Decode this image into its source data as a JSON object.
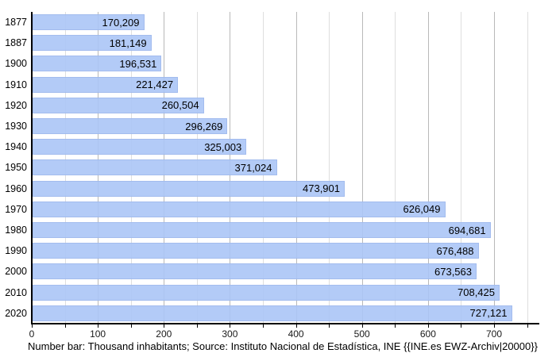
{
  "chart_data": {
    "type": "bar",
    "orientation": "horizontal",
    "title": "",
    "xlabel": "",
    "ylabel": "",
    "units": "thousand inhabitants",
    "categories": [
      "1877",
      "1887",
      "1900",
      "1910",
      "1920",
      "1930",
      "1940",
      "1950",
      "1960",
      "1970",
      "1980",
      "1990",
      "2000",
      "2010",
      "2020"
    ],
    "values": [
      170209,
      181149,
      196531,
      221427,
      260504,
      296269,
      325003,
      371024,
      473901,
      626049,
      694681,
      676488,
      673563,
      708425,
      727121
    ],
    "value_labels": [
      "170,209",
      "181,149",
      "196,531",
      "221,427",
      "260,504",
      "296,269",
      "325,003",
      "371,024",
      "473,901",
      "626,049",
      "694,681",
      "676,488",
      "673,563",
      "708,425",
      "727,121"
    ],
    "x_tick_labels": [
      "0",
      "100",
      "200",
      "300",
      "400",
      "500",
      "600",
      "700"
    ],
    "x_major_step": 100,
    "x_minor_step": 50,
    "xlim": [
      0,
      767
    ],
    "grid": "vertical",
    "legend": "none",
    "caption": "Number bar: Thousand inhabitants; Source: Instituto Nacional de Estadística, INE {{INE.es EWZ-Archiv|20000}}",
    "colors": {
      "bar_fill": "#aec6f4",
      "bar_border": "#96b0e8",
      "grid_major": "#b9b9b9",
      "grid_minor": "#dedede",
      "axis": "#000000",
      "text": "#000000",
      "background": "#ffffff"
    }
  }
}
